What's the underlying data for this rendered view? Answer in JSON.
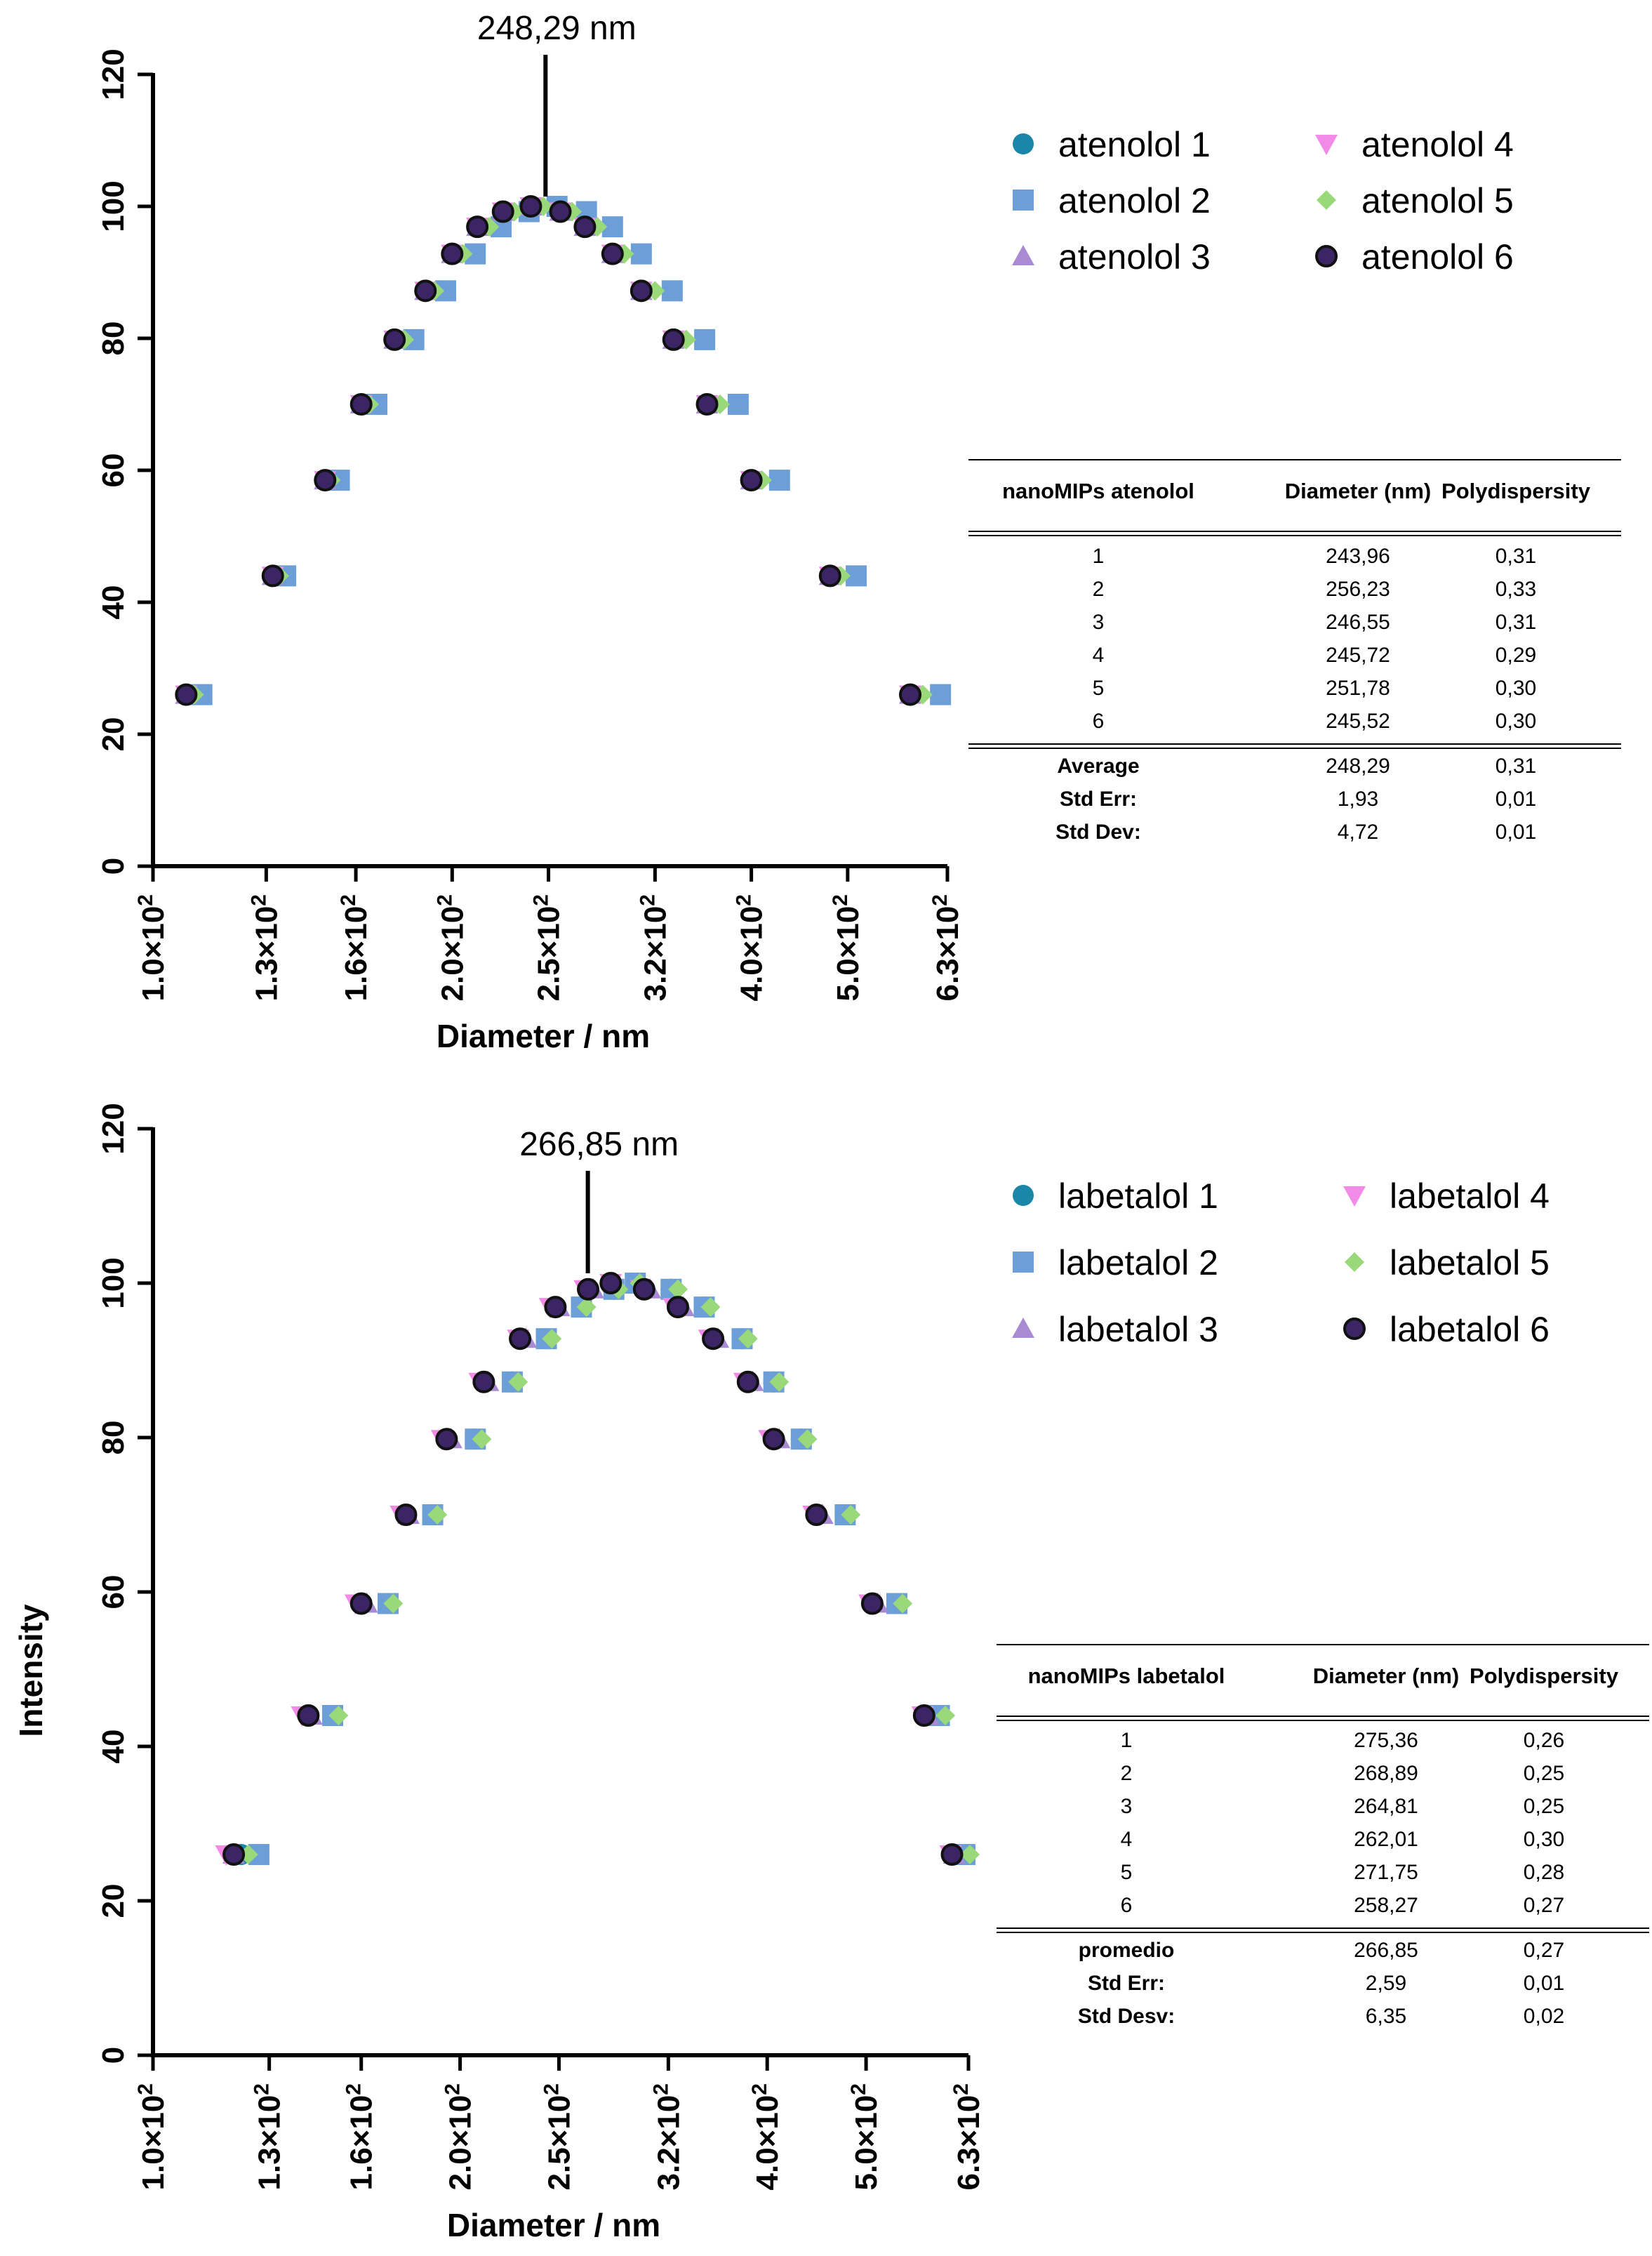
{
  "y_axis_title": "Intensity",
  "colors": {
    "series_1": "#1a87a8",
    "series_2": "#6c9fd8",
    "series_3": "#a98bd4",
    "series_4": "#f28be8",
    "series_5": "#99d97a",
    "series_6": "#3b2564",
    "axis": "#000000"
  },
  "markers": [
    "circle",
    "square",
    "triangle-up",
    "triangle-down",
    "diamond",
    "circle-outlined"
  ],
  "chart_data": [
    {
      "type": "scatter",
      "xscale": "log",
      "xlabel": "Diameter / nm",
      "ylabel": "Intensity",
      "xlim": [
        100,
        630
      ],
      "ylim": [
        0,
        120
      ],
      "x_ticks": [
        100,
        130,
        160,
        200,
        250,
        320,
        400,
        500,
        630
      ],
      "x_tick_mantissas": [
        "1.0",
        "1.3",
        "1.6",
        "2.0",
        "2.5",
        "3.2",
        "4.0",
        "5.0",
        "6.3"
      ],
      "x_tick_exponent": "2",
      "y_ticks": [
        0,
        20,
        40,
        60,
        80,
        100,
        120
      ],
      "grid": false,
      "legend_position": "top-right",
      "peak_value": 248.29,
      "peak_label": "248,29 nm",
      "intensity_levels": [
        26,
        44,
        58.5,
        70,
        79.8,
        87.2,
        92.8,
        96.9,
        99.2,
        100,
        99.2,
        96.9,
        92.8,
        87.2,
        79.8,
        70,
        58.5,
        44,
        26
      ],
      "series": [
        {
          "name": "atenolol 1",
          "x": [
            108,
            132,
            149,
            162,
            175,
            188,
            200,
            212,
            225,
            240,
            257,
            272,
            290,
            310,
            334,
            361,
            400,
            480,
            578
          ],
          "y": [
            26,
            44,
            58.5,
            70,
            79.8,
            87.2,
            92.8,
            96.9,
            99.2,
            100,
            99.2,
            96.9,
            92.8,
            87.2,
            79.8,
            70,
            58.5,
            44,
            26
          ]
        },
        {
          "name": "atenolol 2",
          "x": [
            112,
            136,
            154,
            168,
            183,
            197,
            211,
            224,
            239,
            255,
            273,
            290,
            310,
            333,
            359,
            388,
            427,
            510,
            620
          ],
          "y": [
            26,
            44,
            58.5,
            70,
            79.8,
            87.2,
            92.8,
            96.9,
            99.2,
            100,
            99.2,
            96.9,
            92.8,
            87.2,
            79.8,
            70,
            58.5,
            44,
            26
          ]
        },
        {
          "name": "atenolol 3",
          "x": [
            108,
            132,
            149,
            162,
            175,
            188,
            200,
            212,
            225,
            240,
            257,
            272,
            290,
            310,
            334,
            361,
            400,
            480,
            578
          ],
          "y": [
            26,
            44,
            58.5,
            70,
            79.8,
            87.2,
            92.8,
            96.9,
            99.2,
            100,
            99.2,
            96.9,
            92.8,
            87.2,
            79.8,
            70,
            58.5,
            44,
            26
          ]
        },
        {
          "name": "atenolol 4",
          "x": [
            108,
            132,
            149,
            162,
            175,
            188,
            200,
            212,
            225,
            240,
            257,
            272,
            290,
            310,
            334,
            361,
            400,
            480,
            578
          ],
          "y": [
            26,
            44,
            58.5,
            70,
            79.8,
            87.2,
            92.8,
            96.9,
            99.2,
            100,
            99.2,
            96.9,
            92.8,
            87.2,
            79.8,
            70,
            58.5,
            44,
            26
          ]
        },
        {
          "name": "atenolol 5",
          "x": [
            110,
            134,
            151,
            165,
            179,
            192,
            205,
            218,
            231,
            247,
            264,
            280,
            298,
            320,
            344,
            372,
            410,
            492,
            595
          ],
          "y": [
            26,
            44,
            58.5,
            70,
            79.8,
            87.2,
            92.8,
            96.9,
            99.2,
            100,
            99.2,
            96.9,
            92.8,
            87.2,
            79.8,
            70,
            58.5,
            44,
            26
          ]
        },
        {
          "name": "atenolol 6",
          "x": [
            108,
            132,
            149,
            162,
            175,
            188,
            200,
            212,
            225,
            240,
            257,
            272,
            290,
            310,
            334,
            361,
            400,
            480,
            578
          ],
          "y": [
            26,
            44,
            58.5,
            70,
            79.8,
            87.2,
            92.8,
            96.9,
            99.2,
            100,
            99.2,
            96.9,
            92.8,
            87.2,
            79.8,
            70,
            58.5,
            44,
            26
          ]
        }
      ]
    },
    {
      "type": "scatter",
      "xscale": "log",
      "xlabel": "Diameter / nm",
      "ylabel": "Intensity",
      "xlim": [
        100,
        630
      ],
      "ylim": [
        0,
        120
      ],
      "x_ticks": [
        100,
        130,
        160,
        200,
        250,
        320,
        400,
        500,
        630
      ],
      "x_tick_mantissas": [
        "1.0",
        "1.3",
        "1.6",
        "2.0",
        "2.5",
        "3.2",
        "4.0",
        "5.0",
        "6.3"
      ],
      "x_tick_exponent": "2",
      "y_ticks": [
        0,
        20,
        40,
        60,
        80,
        100,
        120
      ],
      "grid": false,
      "legend_position": "top-right",
      "peak_value": 266.85,
      "peak_label": "266,85 nm",
      "intensity_levels": [
        26,
        44,
        58.5,
        70,
        79.8,
        87.2,
        92.8,
        96.9,
        99.2,
        100,
        99.2,
        96.9,
        92.8,
        87.2,
        79.8,
        70,
        58.5,
        44,
        26
      ],
      "series": [
        {
          "name": "labetalol 1",
          "x": [
            122,
            150,
            170,
            188,
            207,
            225,
            243,
            263,
            283,
            297,
            322,
            347,
            378,
            406,
            432,
            477,
            536,
            590,
            625
          ],
          "y": [
            26,
            44,
            58.5,
            70,
            79.8,
            87.2,
            92.8,
            96.9,
            99.2,
            100,
            99.2,
            96.9,
            92.8,
            87.2,
            79.8,
            70,
            58.5,
            44,
            26
          ]
        },
        {
          "name": "labetalol 2",
          "x": [
            127,
            150,
            170,
            188,
            207,
            225,
            243,
            263,
            283,
            297,
            322,
            347,
            378,
            406,
            432,
            477,
            536,
            590,
            625
          ],
          "y": [
            26,
            44,
            58.5,
            70,
            79.8,
            87.2,
            92.8,
            96.9,
            99.2,
            100,
            99.2,
            96.9,
            92.8,
            87.2,
            79.8,
            70,
            58.5,
            44,
            26
          ]
        },
        {
          "name": "labetalol 3",
          "x": [
            120,
            143,
            162,
            178,
            196,
            213,
            232,
            250,
            270,
            283,
            307,
            331,
            358,
            387,
            411,
            453,
            513,
            575,
            610
          ],
          "y": [
            26,
            44,
            58.5,
            70,
            79.8,
            87.2,
            92.8,
            96.9,
            99.2,
            100,
            99.2,
            96.9,
            92.8,
            87.2,
            79.8,
            70,
            58.5,
            44,
            26
          ]
        },
        {
          "name": "labetalol 4",
          "x": [
            118,
            140,
            158,
            175,
            192,
            209,
            228,
            245,
            265,
            281,
            301,
            324,
            351,
            380,
            402,
            444,
            504,
            568,
            605
          ],
          "y": [
            26,
            44,
            58.5,
            70,
            79.8,
            87.2,
            92.8,
            96.9,
            99.2,
            100,
            99.2,
            96.9,
            92.8,
            87.2,
            79.8,
            70,
            58.5,
            44,
            26
          ]
        },
        {
          "name": "labetalol 5",
          "x": [
            124,
            152,
            172,
            190,
            210,
            228,
            246,
            266,
            286,
            300,
            327,
            352,
            383,
            411,
            438,
            483,
            543,
            598,
            632
          ],
          "y": [
            26,
            44,
            58.5,
            70,
            79.8,
            87.2,
            92.8,
            96.9,
            99.2,
            100,
            99.2,
            96.9,
            92.8,
            87.2,
            79.8,
            70,
            58.5,
            44,
            26
          ]
        },
        {
          "name": "labetalol 6",
          "x": [
            120,
            142,
            160,
            177,
            194,
            211,
            229,
            248,
            267,
            281,
            303,
            327,
            354,
            383,
            406,
            447,
            507,
            570,
            607
          ],
          "y": [
            26,
            44,
            58.5,
            70,
            79.8,
            87.2,
            92.8,
            96.9,
            99.2,
            100,
            99.2,
            96.9,
            92.8,
            87.2,
            79.8,
            70,
            58.5,
            44,
            26
          ]
        }
      ]
    }
  ],
  "tables": [
    {
      "headers": [
        "nanoMIPs atenolol",
        "Diameter (nm)",
        "Polydispersity"
      ],
      "rows": [
        [
          "1",
          "243,96",
          "0,31"
        ],
        [
          "2",
          "256,23",
          "0,33"
        ],
        [
          "3",
          "246,55",
          "0,31"
        ],
        [
          "4",
          "245,72",
          "0,29"
        ],
        [
          "5",
          "251,78",
          "0,30"
        ],
        [
          "6",
          "245,52",
          "0,30"
        ]
      ],
      "summary": [
        [
          "Average",
          "248,29",
          "0,31"
        ],
        [
          "Std Err:",
          "1,93",
          "0,01"
        ],
        [
          "Std Dev:",
          "4,72",
          "0,01"
        ]
      ]
    },
    {
      "headers": [
        "nanoMIPs labetalol",
        "Diameter (nm)",
        "Polydispersity"
      ],
      "rows": [
        [
          "1",
          "275,36",
          "0,26"
        ],
        [
          "2",
          "268,89",
          "0,25"
        ],
        [
          "3",
          "264,81",
          "0,25"
        ],
        [
          "4",
          "262,01",
          "0,30"
        ],
        [
          "5",
          "271,75",
          "0,28"
        ],
        [
          "6",
          "258,27",
          "0,27"
        ]
      ],
      "summary": [
        [
          "promedio",
          "266,85",
          "0,27"
        ],
        [
          "Std Err:",
          "2,59",
          "0,01"
        ],
        [
          "Std Desv:",
          "6,35",
          "0,02"
        ]
      ]
    }
  ]
}
